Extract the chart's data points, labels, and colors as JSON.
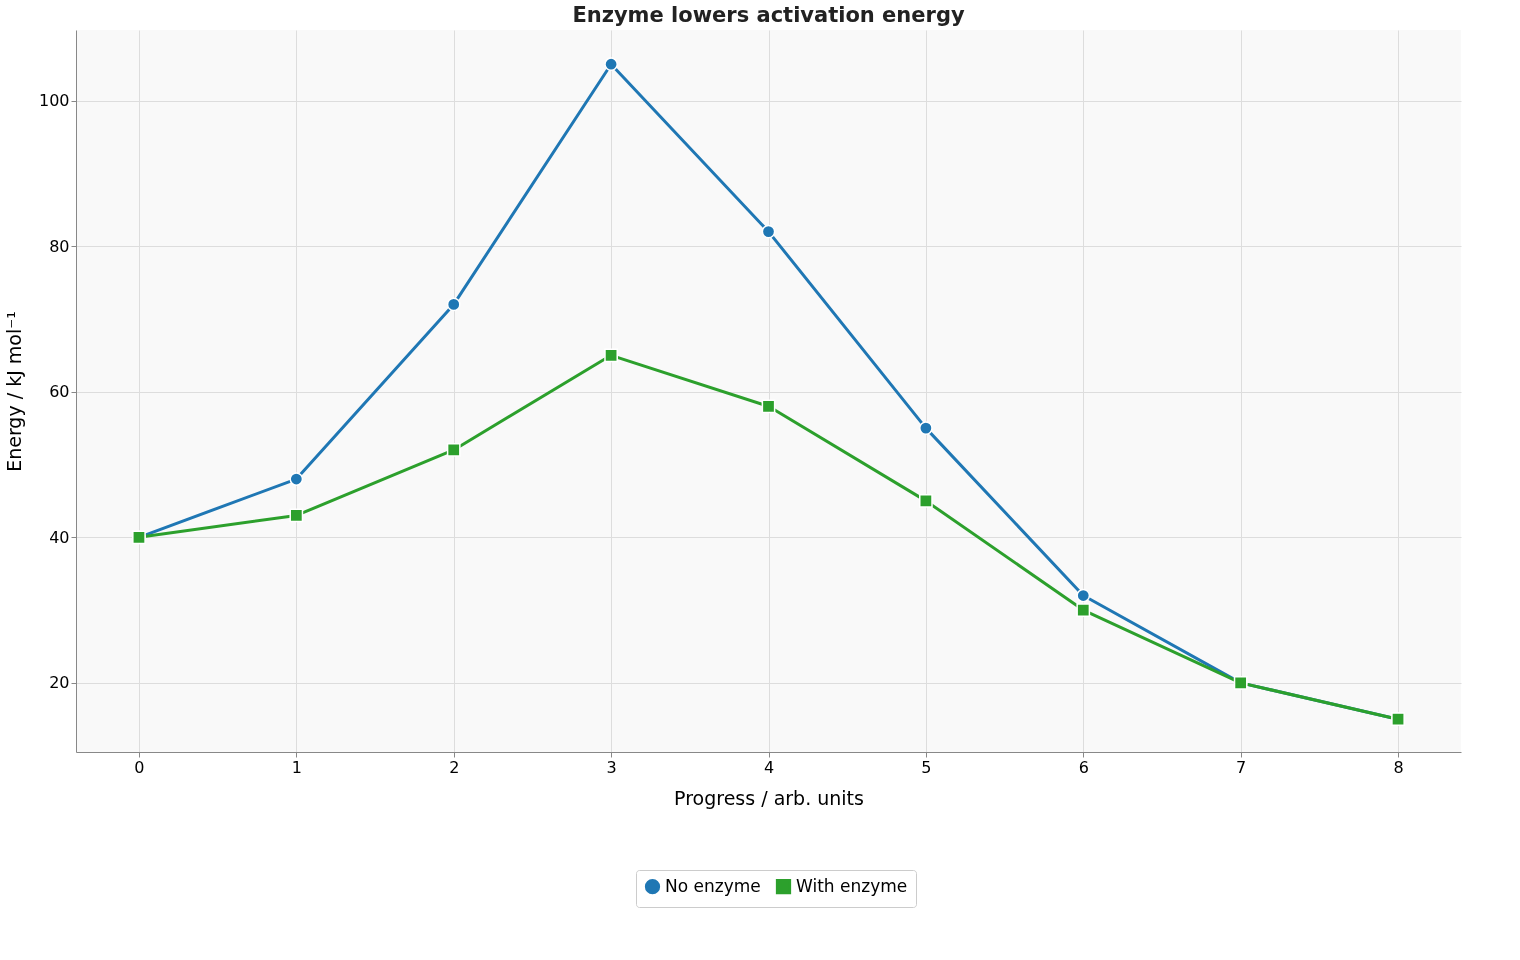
{
  "chart_data": {
    "type": "line",
    "title": "Enzyme lowers activation energy",
    "xlabel": "Progress / arb. units",
    "ylabel": "Energy / kJ mol⁻¹",
    "x": [
      0,
      1,
      2,
      3,
      4,
      5,
      6,
      7,
      8
    ],
    "series": [
      {
        "name": "No enzyme",
        "color": "#1f77b4",
        "marker": "circle",
        "values": [
          40,
          48,
          72,
          105,
          82,
          55,
          32,
          20,
          15
        ]
      },
      {
        "name": "With enzyme",
        "color": "#2ca02c",
        "marker": "square",
        "values": [
          40,
          43,
          52,
          65,
          58,
          45,
          30,
          20,
          15
        ]
      }
    ],
    "xlim": [
      -0.4,
      8.4
    ],
    "xticks": [
      0,
      1,
      2,
      3,
      4,
      5,
      6,
      7,
      8
    ],
    "ylim": [
      10.5,
      109.7
    ],
    "yticks": [
      20,
      40,
      60,
      80,
      100
    ],
    "grid": true,
    "legend": "bottom",
    "line_style": "solid"
  }
}
